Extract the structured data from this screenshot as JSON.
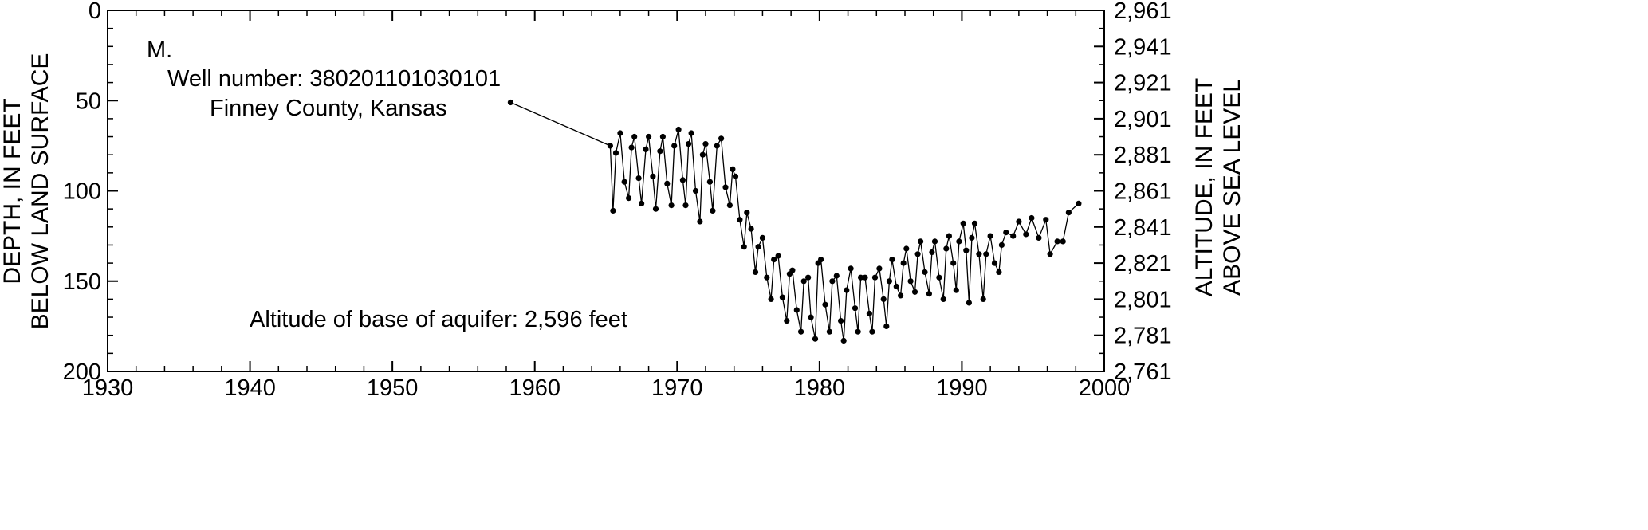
{
  "chart_data": {
    "type": "line",
    "panel_label": "M.",
    "well_label": "Well number: 380201101030101",
    "county_label": "Finney County, Kansas",
    "base_note": "Altitude of base of aquifer: 2,596 feet",
    "ylabel_left": [
      "DEPTH, IN FEET",
      "BELOW LAND SURFACE"
    ],
    "ylabel_right": [
      "ALTITUDE, IN FEET",
      "ABOVE SEA LEVEL"
    ],
    "xlim": [
      1930,
      2000
    ],
    "ylim_depth": [
      0,
      200
    ],
    "ylim_altitude": [
      2761,
      2961
    ],
    "x_ticks": [
      "1930",
      "1940",
      "1950",
      "1960",
      "1970",
      "1980",
      "1990",
      "2000"
    ],
    "y_ticks_left": [
      "0",
      "50",
      "100",
      "150",
      "200"
    ],
    "y_ticks_right": [
      "2,961",
      "2,941",
      "2,921",
      "2,901",
      "2,881",
      "2,861",
      "2,841",
      "2,821",
      "2,801",
      "2,781",
      "2,761"
    ],
    "series": [
      {
        "values": [
          [
            1958.3,
            51
          ],
          [
            1965.3,
            75
          ],
          [
            1965.5,
            111
          ],
          [
            1965.7,
            79
          ],
          [
            1966.0,
            68
          ],
          [
            1966.3,
            95
          ],
          [
            1966.6,
            104
          ],
          [
            1966.8,
            76
          ],
          [
            1967.0,
            70
          ],
          [
            1967.3,
            93
          ],
          [
            1967.5,
            107
          ],
          [
            1967.8,
            77
          ],
          [
            1968.0,
            70
          ],
          [
            1968.3,
            92
          ],
          [
            1968.5,
            110
          ],
          [
            1968.8,
            78
          ],
          [
            1969.0,
            70
          ],
          [
            1969.3,
            96
          ],
          [
            1969.6,
            108
          ],
          [
            1969.8,
            75
          ],
          [
            1970.1,
            66
          ],
          [
            1970.4,
            94
          ],
          [
            1970.6,
            108
          ],
          [
            1970.8,
            74
          ],
          [
            1971.0,
            68
          ],
          [
            1971.3,
            100
          ],
          [
            1971.6,
            117
          ],
          [
            1971.8,
            80
          ],
          [
            1972.0,
            74
          ],
          [
            1972.3,
            95
          ],
          [
            1972.5,
            111
          ],
          [
            1972.8,
            75
          ],
          [
            1973.1,
            71
          ],
          [
            1973.4,
            98
          ],
          [
            1973.7,
            108
          ],
          [
            1973.9,
            88
          ],
          [
            1974.1,
            92
          ],
          [
            1974.4,
            116
          ],
          [
            1974.7,
            131
          ],
          [
            1974.9,
            112
          ],
          [
            1975.2,
            121
          ],
          [
            1975.5,
            145
          ],
          [
            1975.7,
            131
          ],
          [
            1976.0,
            126
          ],
          [
            1976.3,
            148
          ],
          [
            1976.6,
            160
          ],
          [
            1976.8,
            138
          ],
          [
            1977.1,
            136
          ],
          [
            1977.4,
            159
          ],
          [
            1977.7,
            172
          ],
          [
            1977.9,
            146
          ],
          [
            1978.1,
            144
          ],
          [
            1978.4,
            166
          ],
          [
            1978.7,
            178
          ],
          [
            1978.9,
            150
          ],
          [
            1979.2,
            148
          ],
          [
            1979.4,
            170
          ],
          [
            1979.7,
            182
          ],
          [
            1979.9,
            140
          ],
          [
            1980.1,
            138
          ],
          [
            1980.4,
            163
          ],
          [
            1980.7,
            178
          ],
          [
            1980.9,
            150
          ],
          [
            1981.2,
            147
          ],
          [
            1981.5,
            172
          ],
          [
            1981.7,
            183
          ],
          [
            1981.9,
            155
          ],
          [
            1982.2,
            143
          ],
          [
            1982.5,
            165
          ],
          [
            1982.7,
            178
          ],
          [
            1982.9,
            148
          ],
          [
            1983.2,
            148
          ],
          [
            1983.5,
            168
          ],
          [
            1983.7,
            178
          ],
          [
            1983.9,
            148
          ],
          [
            1984.2,
            143
          ],
          [
            1984.5,
            160
          ],
          [
            1984.7,
            175
          ],
          [
            1984.9,
            150
          ],
          [
            1985.1,
            138
          ],
          [
            1985.4,
            153
          ],
          [
            1985.7,
            158
          ],
          [
            1985.9,
            140
          ],
          [
            1986.1,
            132
          ],
          [
            1986.4,
            150
          ],
          [
            1986.7,
            156
          ],
          [
            1986.9,
            135
          ],
          [
            1987.1,
            128
          ],
          [
            1987.4,
            145
          ],
          [
            1987.7,
            157
          ],
          [
            1987.9,
            134
          ],
          [
            1988.1,
            128
          ],
          [
            1988.4,
            148
          ],
          [
            1988.7,
            160
          ],
          [
            1988.9,
            132
          ],
          [
            1989.1,
            125
          ],
          [
            1989.4,
            140
          ],
          [
            1989.6,
            155
          ],
          [
            1989.8,
            128
          ],
          [
            1990.1,
            118
          ],
          [
            1990.3,
            133
          ],
          [
            1990.5,
            162
          ],
          [
            1990.7,
            126
          ],
          [
            1990.9,
            118
          ],
          [
            1991.2,
            135
          ],
          [
            1991.5,
            160
          ],
          [
            1991.7,
            135
          ],
          [
            1992.0,
            125
          ],
          [
            1992.3,
            140
          ],
          [
            1992.6,
            145
          ],
          [
            1992.8,
            130
          ],
          [
            1993.1,
            123
          ],
          [
            1993.6,
            125
          ],
          [
            1994.0,
            117
          ],
          [
            1994.5,
            124
          ],
          [
            1994.9,
            115
          ],
          [
            1995.4,
            126
          ],
          [
            1995.9,
            116
          ],
          [
            1996.2,
            135
          ],
          [
            1996.7,
            128
          ],
          [
            1997.1,
            128
          ],
          [
            1997.5,
            112
          ],
          [
            1998.2,
            107
          ]
        ]
      }
    ]
  }
}
